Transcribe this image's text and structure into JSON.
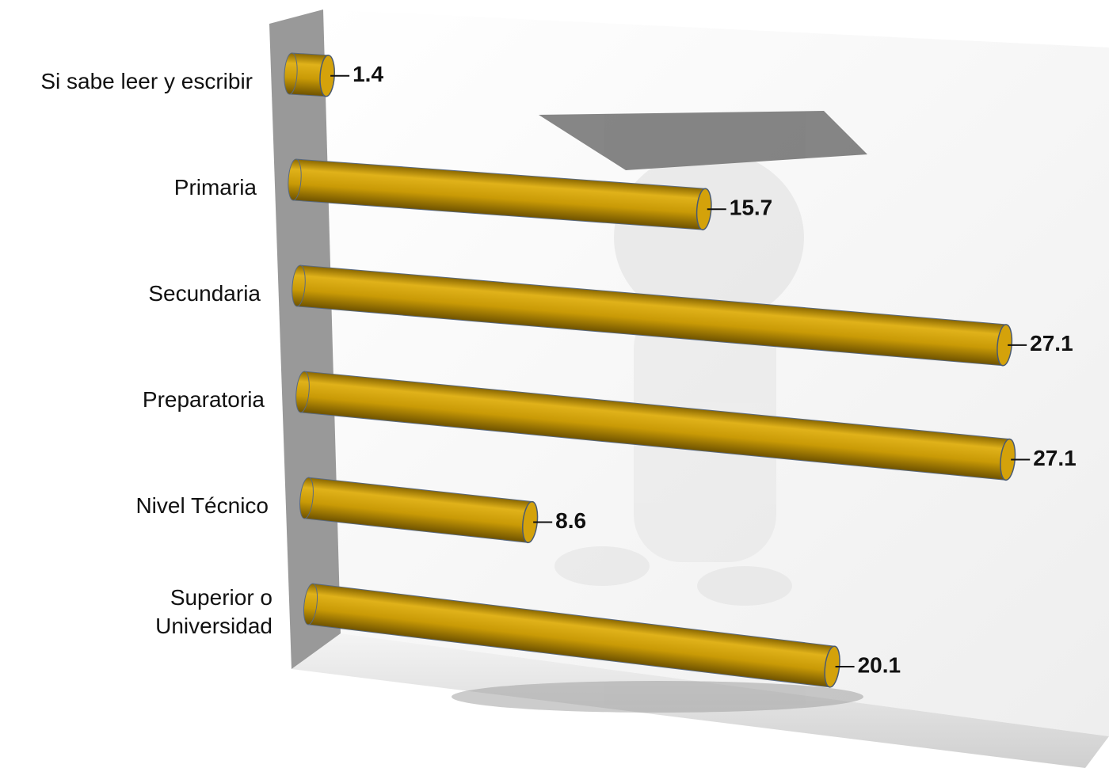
{
  "chart_data": {
    "type": "bar",
    "orientation": "horizontal",
    "categories": [
      "Si sabe leer y escribir",
      "Primaria",
      "Secundaria",
      "Preparatoria",
      "Nivel Técnico",
      "Superior o\nUniversidad"
    ],
    "values": [
      1.4,
      15.7,
      27.1,
      27.1,
      8.6,
      20.1
    ],
    "color": "#d4a20a"
  }
}
